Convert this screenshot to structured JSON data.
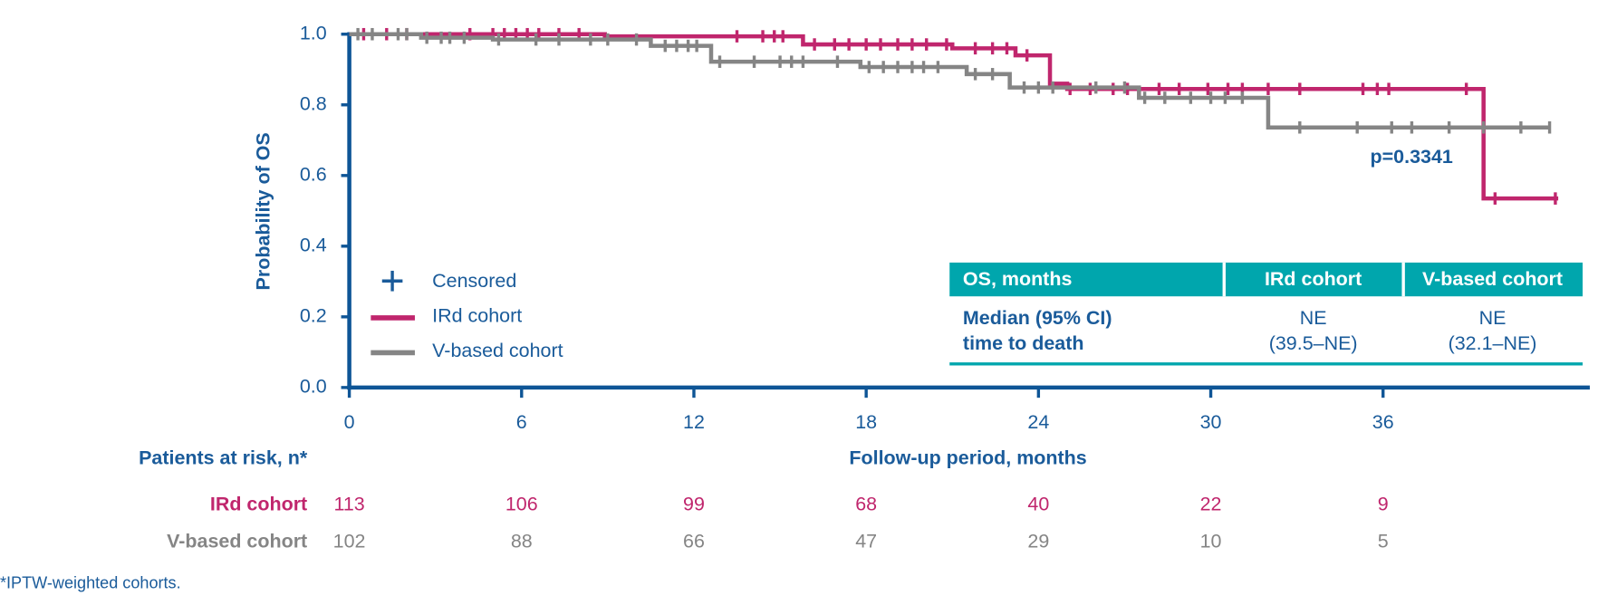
{
  "chart_data": {
    "type": "line",
    "title": null,
    "x_label": "Follow-up period, months",
    "y_label": "Probability of OS",
    "xlim": [
      0,
      43.2
    ],
    "xticks": [
      0,
      6,
      12,
      18,
      24,
      30,
      36
    ],
    "ylim": [
      0,
      1
    ],
    "yticks": [
      {
        "value": 0,
        "label": "0.0"
      },
      0.2,
      0.4,
      0.6,
      0.8,
      {
        "value": 1,
        "label": "1.0"
      }
    ],
    "censor_label": "Censored",
    "annotation": "p=0.3341",
    "series": [
      {
        "name": "IRd cohort",
        "color": "#c0266d",
        "x": [
          0,
          8.9,
          8.9,
          15.8,
          15.8,
          21.0,
          21.0,
          23.2,
          23.2,
          24.4,
          24.4,
          25.0,
          25.0,
          39.5,
          39.5,
          42.1
        ],
        "values": [
          1,
          1,
          0.994,
          0.994,
          0.971,
          0.971,
          0.96,
          0.96,
          0.94,
          0.94,
          0.86,
          0.86,
          0.845,
          0.845,
          0.535,
          0.535
        ],
        "censored": {
          "x": [
            0.5,
            1.3,
            2.0,
            4.2,
            5.0,
            5.4,
            5.8,
            6.2,
            6.6,
            7.3,
            8.0,
            13.5,
            14.4,
            14.8,
            15.1,
            16.2,
            16.9,
            17.4,
            18.0,
            18.5,
            19.1,
            19.6,
            20.1,
            20.8,
            21.8,
            22.4,
            22.9,
            23.6,
            25.1,
            25.8,
            26.6,
            27.1,
            28.2,
            28.9,
            29.9,
            30.6,
            31.1,
            32.0,
            33.1,
            35.3,
            35.8,
            36.2,
            38.9,
            39.9,
            42.0
          ],
          "values": [
            1,
            1,
            1,
            1,
            1,
            1,
            1,
            1,
            1,
            1,
            1,
            0.994,
            0.994,
            0.994,
            0.994,
            0.971,
            0.971,
            0.971,
            0.971,
            0.971,
            0.971,
            0.971,
            0.971,
            0.971,
            0.96,
            0.96,
            0.96,
            0.94,
            0.845,
            0.845,
            0.845,
            0.845,
            0.845,
            0.845,
            0.845,
            0.845,
            0.845,
            0.845,
            0.845,
            0.845,
            0.845,
            0.845,
            0.845,
            0.535,
            0.535
          ]
        },
        "at_risk": [
          113,
          106,
          99,
          68,
          40,
          22,
          9
        ]
      },
      {
        "name": "V-based cohort",
        "color": "#858585",
        "x": [
          0,
          2.5,
          2.5,
          5.0,
          5.0,
          10.5,
          10.5,
          12.6,
          12.6,
          17.8,
          17.8,
          21.5,
          21.5,
          23.0,
          23.0,
          27.5,
          27.5,
          32.0,
          32.0,
          41.8
        ],
        "values": [
          1,
          1,
          0.99,
          0.99,
          0.985,
          0.985,
          0.967,
          0.967,
          0.922,
          0.922,
          0.907,
          0.907,
          0.887,
          0.887,
          0.849,
          0.849,
          0.82,
          0.82,
          0.736,
          0.736
        ],
        "censored": {
          "x": [
            0.3,
            0.8,
            1.7,
            2.0,
            2.7,
            3.2,
            3.5,
            4.0,
            5.2,
            6.5,
            7.3,
            8.4,
            9.0,
            10.0,
            11.0,
            11.4,
            11.8,
            12.1,
            12.9,
            14.1,
            15.0,
            15.4,
            15.8,
            17.0,
            18.1,
            18.6,
            19.1,
            19.6,
            20.0,
            20.5,
            21.8,
            22.4,
            23.5,
            24.0,
            24.5,
            26.0,
            27.0,
            27.7,
            28.4,
            29.3,
            30.0,
            30.5,
            31.1,
            33.1,
            35.1,
            36.3,
            37.0,
            38.3,
            39.5,
            40.8,
            41.8
          ],
          "values": [
            1,
            1,
            1,
            1,
            0.99,
            0.99,
            0.99,
            0.99,
            0.985,
            0.985,
            0.985,
            0.985,
            0.985,
            0.985,
            0.967,
            0.967,
            0.967,
            0.967,
            0.922,
            0.922,
            0.922,
            0.922,
            0.922,
            0.922,
            0.907,
            0.907,
            0.907,
            0.907,
            0.907,
            0.907,
            0.887,
            0.887,
            0.849,
            0.849,
            0.849,
            0.849,
            0.849,
            0.82,
            0.82,
            0.82,
            0.82,
            0.82,
            0.82,
            0.736,
            0.736,
            0.736,
            0.736,
            0.736,
            0.736,
            0.736,
            0.736
          ]
        },
        "at_risk": [
          102,
          88,
          66,
          47,
          29,
          10,
          5
        ]
      }
    ],
    "risk_title": "Patients at risk, n*",
    "footnote": "*IPTW-weighted cohorts.",
    "median_table": {
      "header": "OS, months",
      "row_label": [
        "Median (95% CI)",
        "time to death"
      ],
      "cells": [
        [
          "NE",
          "(39.5–NE)"
        ],
        [
          "NE",
          "(32.1–NE)"
        ]
      ]
    }
  }
}
